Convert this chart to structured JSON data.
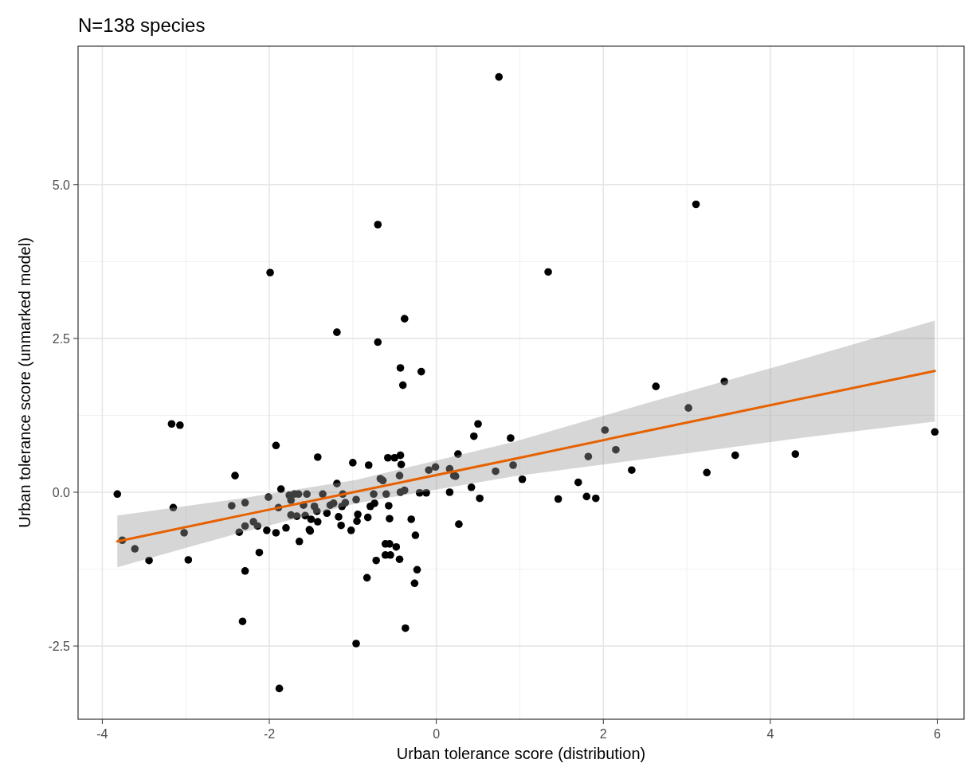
{
  "chart_data": {
    "type": "scatter",
    "title": "N=138 species",
    "xlabel": "Urban tolerance score (distribution)",
    "ylabel": "Urban tolerance score (unmarked model)",
    "xlim": [
      -4.29,
      6.32
    ],
    "ylim": [
      -3.69,
      7.25
    ],
    "xticks": [
      -4,
      -2,
      0,
      2,
      4,
      6
    ],
    "yticks": [
      -2.5,
      {
        "value": 0,
        "label": "0.0"
      },
      2.5,
      {
        "value": 5,
        "label": "5.0"
      }
    ],
    "grid": true,
    "series": [
      {
        "marker": "circle",
        "color": "#000000",
        "x": [
          -3.82,
          -3.76,
          -3.61,
          -3.44,
          -3.17,
          -3.07,
          -3.15,
          -3.02,
          -2.97,
          -2.41,
          -2.45,
          -2.36,
          -2.29,
          -2.29,
          -2.32,
          -2.29,
          -2.19,
          -2.14,
          -2.12,
          -2.03,
          -2.01,
          -1.99,
          -1.92,
          -1.92,
          -1.89,
          -1.86,
          -1.88,
          -1.8,
          -1.76,
          -1.74,
          -1.74,
          -1.7,
          -1.67,
          -1.65,
          -1.64,
          -1.59,
          -1.57,
          -1.55,
          -1.52,
          -1.5,
          -1.51,
          -1.46,
          -1.42,
          -1.43,
          -1.42,
          -1.36,
          -1.31,
          -1.27,
          -1.23,
          -1.19,
          -1.19,
          -1.17,
          -1.14,
          -1.13,
          -1.12,
          -1.09,
          -1.02,
          -1.0,
          -0.96,
          -0.95,
          -0.94,
          -0.96,
          -0.83,
          -0.82,
          -0.81,
          -0.79,
          -0.74,
          -0.75,
          -0.72,
          -0.7,
          -0.7,
          -0.67,
          -0.64,
          -0.61,
          -0.61,
          -0.6,
          -0.58,
          -0.5,
          -0.43,
          -0.42,
          -0.57,
          -0.56,
          -0.56,
          -0.48,
          -0.55,
          -0.44,
          -0.3,
          -0.25,
          -0.23,
          -0.26,
          -0.37,
          -0.44,
          -0.38,
          -0.43,
          -0.2,
          -0.12,
          -0.09,
          -0.01,
          -0.43,
          -0.4,
          -0.18,
          -0.38,
          0.16,
          0.21,
          0.23,
          0.16,
          0.27,
          0.42,
          0.52,
          0.45,
          0.5,
          0.26,
          0.71,
          0.89,
          0.92,
          0.75,
          1.03,
          1.34,
          1.46,
          1.7,
          1.8,
          1.82,
          1.91,
          2.02,
          2.15,
          2.34,
          2.63,
          3.02,
          3.11,
          3.24,
          3.45,
          3.58,
          4.3,
          5.97
        ],
        "values": [
          -0.03,
          -0.78,
          -0.92,
          -1.11,
          1.11,
          1.09,
          -0.25,
          -0.66,
          -1.1,
          0.27,
          -0.22,
          -0.65,
          -0.17,
          -1.28,
          -2.1,
          -0.55,
          -0.48,
          -0.55,
          -0.98,
          -0.62,
          -0.08,
          3.57,
          0.76,
          -0.66,
          -0.25,
          0.05,
          -3.19,
          -0.58,
          -0.05,
          -0.13,
          -0.37,
          -0.03,
          -0.39,
          -0.03,
          -0.8,
          -0.21,
          -0.38,
          -0.03,
          -0.61,
          -0.44,
          -0.63,
          -0.23,
          0.57,
          -0.31,
          -0.48,
          -0.03,
          -0.34,
          -0.21,
          -0.18,
          2.6,
          0.14,
          -0.4,
          -0.54,
          -0.23,
          -0.03,
          -0.17,
          -0.62,
          0.48,
          -0.12,
          -0.47,
          -0.36,
          -2.46,
          -1.39,
          -0.41,
          0.44,
          -0.23,
          -0.18,
          -0.03,
          -1.11,
          2.44,
          4.35,
          0.22,
          0.19,
          -1.02,
          -0.84,
          -0.03,
          0.56,
          0.56,
          0.6,
          0.45,
          -0.22,
          -0.43,
          -0.84,
          -0.89,
          -1.02,
          -1.09,
          -0.44,
          -0.7,
          -1.26,
          -1.48,
          -2.21,
          0.27,
          0.03,
          0.0,
          -0.01,
          -0.01,
          0.36,
          0.41,
          2.02,
          1.74,
          1.96,
          2.82,
          0.38,
          0.27,
          0.26,
          0.0,
          -0.52,
          0.08,
          -0.1,
          0.91,
          1.11,
          0.62,
          0.34,
          0.88,
          0.44,
          6.75,
          0.21,
          3.58,
          -0.11,
          0.16,
          -0.07,
          0.58,
          -0.1,
          1.01,
          0.69,
          0.36,
          1.72,
          1.37,
          4.68,
          0.32,
          1.8,
          0.6,
          0.62,
          0.98
        ]
      },
      {
        "type": "line",
        "color": "#e66100",
        "x": [
          -3.82,
          -2.38,
          -0.96,
          0.93,
          2.5,
          4.3,
          5.97
        ],
        "values": [
          -0.8,
          -0.39,
          0.01,
          0.54,
          0.99,
          1.5,
          1.97
        ],
        "lower": [
          -1.22,
          -0.67,
          -0.18,
          0.26,
          0.54,
          0.87,
          1.15
        ],
        "upper": [
          -0.38,
          -0.11,
          0.2,
          0.82,
          1.44,
          2.13,
          2.79
        ]
      }
    ]
  }
}
